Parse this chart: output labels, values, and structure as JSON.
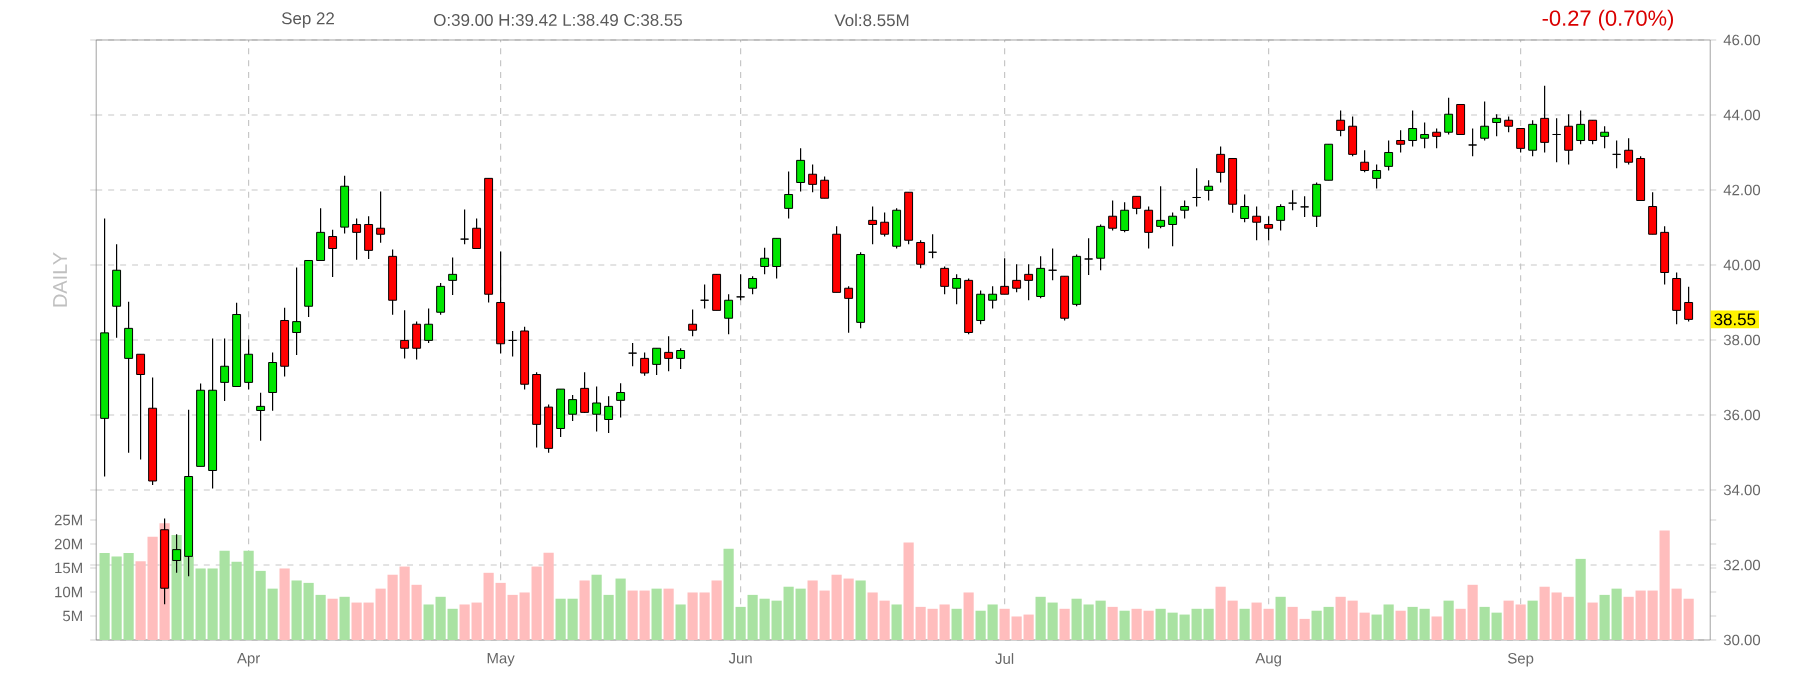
{
  "chart_data": [
    {
      "type": "candlestick",
      "categories": [
        null,
        null,
        null,
        null,
        null,
        null,
        null,
        null,
        null,
        null,
        null,
        null,
        "Apr",
        null,
        null,
        null,
        null,
        null,
        null,
        null,
        null,
        null,
        null,
        null,
        null,
        null,
        null,
        null,
        null,
        null,
        null,
        null,
        null,
        "May",
        null,
        null,
        null,
        null,
        null,
        null,
        null,
        null,
        null,
        null,
        null,
        null,
        null,
        null,
        null,
        null,
        null,
        null,
        null,
        "Jun",
        null,
        null,
        null,
        null,
        null,
        null,
        null,
        null,
        null,
        null,
        null,
        null,
        null,
        null,
        null,
        null,
        null,
        null,
        null,
        null,
        null,
        "Jul",
        null,
        null,
        null,
        null,
        null,
        null,
        null,
        null,
        null,
        null,
        null,
        null,
        null,
        null,
        null,
        null,
        null,
        null,
        null,
        null,
        null,
        "Aug",
        null,
        null,
        null,
        null,
        null,
        null,
        null,
        null,
        null,
        null,
        null,
        null,
        null,
        null,
        null,
        null,
        null,
        null,
        null,
        null,
        "Sep",
        null,
        null,
        null,
        null,
        null,
        null,
        null,
        null,
        null,
        null,
        null,
        null,
        null,
        null
      ],
      "ohlc": [
        [
          35.91,
          41.24,
          34.36,
          38.19
        ],
        [
          38.9,
          40.55,
          38.06,
          39.86
        ],
        [
          37.51,
          39.02,
          34.99,
          38.31
        ],
        [
          37.62,
          37.62,
          34.81,
          37.08
        ],
        [
          36.18,
          37.0,
          34.13,
          34.24
        ],
        [
          32.94,
          33.24,
          30.95,
          31.38
        ],
        [
          32.12,
          32.82,
          31.79,
          32.41
        ],
        [
          32.23,
          36.14,
          31.7,
          34.36
        ],
        [
          34.63,
          36.84,
          34.63,
          36.66
        ],
        [
          34.52,
          38.04,
          34.04,
          36.66
        ],
        [
          36.87,
          38.04,
          36.37,
          37.3
        ],
        [
          36.76,
          38.99,
          36.76,
          38.68
        ],
        [
          36.87,
          38.01,
          36.68,
          37.62
        ],
        [
          36.12,
          36.59,
          35.31,
          36.23
        ],
        [
          36.6,
          37.67,
          36.11,
          37.4
        ],
        [
          38.52,
          38.86,
          37.03,
          37.3
        ],
        [
          38.2,
          39.93,
          37.6,
          38.49
        ],
        [
          38.9,
          40.12,
          38.61,
          40.12
        ],
        [
          40.12,
          41.51,
          40.12,
          40.87
        ],
        [
          40.76,
          40.94,
          39.68,
          40.44
        ],
        [
          41.01,
          42.38,
          40.84,
          42.1
        ],
        [
          41.08,
          41.24,
          40.14,
          40.87
        ],
        [
          41.08,
          41.3,
          40.16,
          40.39
        ],
        [
          40.98,
          41.96,
          40.59,
          40.82
        ],
        [
          40.23,
          40.41,
          38.67,
          39.06
        ],
        [
          37.99,
          38.79,
          37.51,
          37.78
        ],
        [
          38.42,
          38.49,
          37.48,
          37.78
        ],
        [
          37.99,
          38.84,
          37.92,
          38.42
        ],
        [
          38.74,
          39.52,
          38.67,
          39.43
        ],
        [
          39.59,
          40.2,
          39.2,
          39.75
        ],
        [
          40.69,
          41.48,
          40.55,
          40.69
        ],
        [
          40.98,
          41.24,
          40.44,
          40.44
        ],
        [
          42.31,
          42.31,
          39.0,
          39.22
        ],
        [
          39.0,
          40.36,
          37.64,
          37.9
        ],
        [
          37.99,
          38.24,
          37.56,
          37.99
        ],
        [
          38.24,
          38.35,
          36.68,
          36.82
        ],
        [
          37.08,
          37.14,
          35.13,
          35.75
        ],
        [
          36.21,
          36.28,
          34.99,
          35.11
        ],
        [
          35.64,
          36.69,
          35.41,
          36.69
        ],
        [
          36.02,
          36.53,
          35.84,
          36.41
        ],
        [
          36.71,
          37.14,
          36.05,
          36.07
        ],
        [
          36.02,
          36.76,
          35.56,
          36.32
        ],
        [
          35.88,
          36.5,
          35.52,
          36.23
        ],
        [
          36.39,
          36.85,
          35.93,
          36.6
        ],
        [
          37.65,
          37.92,
          37.3,
          37.65
        ],
        [
          37.51,
          37.67,
          37.05,
          37.12
        ],
        [
          37.35,
          37.78,
          37.07,
          37.78
        ],
        [
          37.67,
          38.1,
          37.17,
          37.51
        ],
        [
          37.51,
          37.78,
          37.23,
          37.72
        ],
        [
          38.42,
          38.81,
          38.1,
          38.26
        ],
        [
          39.06,
          39.48,
          38.84,
          39.06
        ],
        [
          39.75,
          39.75,
          38.79,
          38.79
        ],
        [
          38.58,
          39.22,
          38.15,
          39.06
        ],
        [
          39.15,
          39.75,
          39.06,
          39.15
        ],
        [
          39.38,
          39.7,
          39.22,
          39.64
        ],
        [
          39.96,
          40.46,
          39.75,
          40.18
        ],
        [
          39.96,
          40.71,
          39.64,
          40.71
        ],
        [
          41.51,
          42.49,
          41.24,
          41.88
        ],
        [
          42.2,
          43.11,
          41.96,
          42.79
        ],
        [
          42.42,
          42.68,
          41.94,
          42.15
        ],
        [
          42.26,
          42.36,
          41.78,
          41.78
        ],
        [
          40.82,
          41.03,
          39.27,
          39.27
        ],
        [
          39.38,
          39.43,
          38.19,
          39.11
        ],
        [
          38.47,
          40.34,
          38.31,
          40.28
        ],
        [
          41.19,
          41.56,
          40.55,
          41.08
        ],
        [
          41.14,
          41.4,
          40.76,
          40.82
        ],
        [
          40.5,
          41.51,
          40.44,
          41.46
        ],
        [
          41.94,
          41.94,
          40.55,
          40.66
        ],
        [
          40.6,
          40.66,
          39.91,
          40.02
        ],
        [
          40.34,
          40.82,
          40.18,
          40.34
        ],
        [
          39.91,
          39.96,
          39.22,
          39.43
        ],
        [
          39.38,
          39.75,
          38.95,
          39.64
        ],
        [
          39.59,
          39.64,
          38.15,
          38.2
        ],
        [
          38.52,
          39.32,
          38.42,
          39.22
        ],
        [
          39.06,
          39.43,
          38.84,
          39.22
        ],
        [
          39.43,
          40.18,
          39.22,
          39.22
        ],
        [
          39.59,
          40.02,
          39.27,
          39.38
        ],
        [
          39.75,
          40.02,
          39.06,
          39.59
        ],
        [
          39.16,
          40.23,
          39.11,
          39.91
        ],
        [
          39.86,
          40.44,
          39.59,
          39.86
        ],
        [
          39.7,
          39.7,
          38.52,
          38.58
        ],
        [
          38.95,
          40.28,
          38.9,
          40.23
        ],
        [
          40.16,
          40.71,
          39.73,
          40.16
        ],
        [
          40.18,
          41.08,
          39.86,
          41.03
        ],
        [
          41.3,
          41.72,
          40.92,
          40.98
        ],
        [
          40.92,
          41.67,
          40.87,
          41.46
        ],
        [
          41.83,
          41.83,
          41.35,
          41.51
        ],
        [
          41.46,
          41.56,
          40.44,
          40.87
        ],
        [
          41.03,
          42.1,
          40.98,
          41.19
        ],
        [
          41.08,
          41.4,
          40.5,
          41.3
        ],
        [
          41.46,
          41.72,
          41.24,
          41.56
        ],
        [
          41.8,
          42.58,
          41.56,
          41.8
        ],
        [
          41.99,
          42.26,
          41.72,
          42.1
        ],
        [
          42.95,
          43.16,
          42.2,
          42.47
        ],
        [
          42.84,
          42.84,
          41.39,
          41.62
        ],
        [
          41.24,
          41.88,
          41.14,
          41.56
        ],
        [
          41.3,
          41.56,
          40.66,
          41.14
        ],
        [
          41.08,
          41.3,
          40.66,
          40.98
        ],
        [
          41.19,
          41.62,
          40.92,
          41.56
        ],
        [
          41.65,
          41.99,
          41.46,
          41.65
        ],
        [
          41.55,
          41.83,
          41.28,
          41.55
        ],
        [
          41.3,
          42.2,
          41.01,
          42.15
        ],
        [
          42.26,
          43.22,
          42.26,
          43.22
        ],
        [
          43.86,
          44.12,
          43.43,
          43.59
        ],
        [
          43.7,
          43.96,
          42.9,
          42.95
        ],
        [
          42.74,
          43.06,
          42.47,
          42.52
        ],
        [
          42.31,
          42.68,
          42.04,
          42.52
        ],
        [
          42.63,
          43.32,
          42.52,
          43.0
        ],
        [
          43.32,
          43.59,
          43.0,
          43.22
        ],
        [
          43.32,
          44.12,
          43.16,
          43.64
        ],
        [
          43.38,
          43.8,
          43.11,
          43.48
        ],
        [
          43.54,
          43.64,
          43.11,
          43.43
        ],
        [
          43.54,
          44.46,
          43.48,
          44.02
        ],
        [
          44.28,
          44.28,
          43.48,
          43.48
        ],
        [
          43.2,
          43.64,
          42.9,
          43.2
        ],
        [
          43.38,
          44.36,
          43.32,
          43.7
        ],
        [
          43.8,
          44.02,
          43.43,
          43.91
        ],
        [
          43.86,
          43.96,
          43.54,
          43.7
        ],
        [
          43.64,
          43.64,
          43.0,
          43.11
        ],
        [
          43.06,
          43.86,
          42.9,
          43.75
        ],
        [
          43.91,
          44.78,
          43.0,
          43.27
        ],
        [
          43.48,
          43.91,
          42.74,
          43.48
        ],
        [
          43.7,
          44.02,
          42.68,
          43.06
        ],
        [
          43.32,
          44.12,
          43.22,
          43.75
        ],
        [
          43.86,
          43.86,
          43.22,
          43.32
        ],
        [
          43.43,
          43.7,
          43.11,
          43.54
        ],
        [
          42.95,
          43.32,
          42.58,
          42.95
        ],
        [
          43.06,
          43.38,
          42.68,
          42.74
        ],
        [
          42.84,
          42.9,
          41.72,
          41.72
        ],
        [
          41.56,
          41.94,
          40.82,
          40.82
        ],
        [
          40.87,
          41.03,
          39.48,
          39.8
        ],
        [
          39.64,
          39.8,
          38.42,
          38.79
        ],
        [
          39.0,
          39.42,
          38.49,
          38.55
        ]
      ],
      "colors": [
        "#00e600",
        "#00e600",
        "#00e600",
        "#ff0000",
        "#ff0000",
        "#ff0000",
        "#00e600",
        "#00e600",
        "#00e600",
        "#00e600",
        "#00e600",
        "#00e600",
        "#00e600",
        "#00e600",
        "#00e600",
        "#ff0000",
        "#00e600",
        "#00e600",
        "#00e600",
        "#ff0000",
        "#00e600",
        "#ff0000",
        "#ff0000",
        "#ff0000",
        "#ff0000",
        "#ff0000",
        "#ff0000",
        "#00e600",
        "#00e600",
        "#00e600",
        "#000000",
        "#ff0000",
        "#ff0000",
        "#ff0000",
        "#000000",
        "#ff0000",
        "#ff0000",
        "#ff0000",
        "#00e600",
        "#00e600",
        "#ff0000",
        "#00e600",
        "#00e600",
        "#00e600",
        "#000000",
        "#ff0000",
        "#00e600",
        "#ff0000",
        "#00e600",
        "#ff0000",
        "#000000",
        "#ff0000",
        "#00e600",
        "#000000",
        "#00e600",
        "#00e600",
        "#00e600",
        "#00e600",
        "#00e600",
        "#ff0000",
        "#ff0000",
        "#ff0000",
        "#ff0000",
        "#00e600",
        "#ff0000",
        "#ff0000",
        "#00e600",
        "#ff0000",
        "#ff0000",
        "#000000",
        "#ff0000",
        "#00e600",
        "#ff0000",
        "#00e600",
        "#00e600",
        "#ff0000",
        "#ff0000",
        "#ff0000",
        "#00e600",
        "#000000",
        "#ff0000",
        "#00e600",
        "#000000",
        "#00e600",
        "#ff0000",
        "#00e600",
        "#ff0000",
        "#ff0000",
        "#00e600",
        "#00e600",
        "#00e600",
        "#000000",
        "#00e600",
        "#ff0000",
        "#ff0000",
        "#00e600",
        "#ff0000",
        "#ff0000",
        "#00e600",
        "#000000",
        "#000000",
        "#00e600",
        "#00e600",
        "#ff0000",
        "#ff0000",
        "#ff0000",
        "#00e600",
        "#00e600",
        "#ff0000",
        "#00e600",
        "#00e600",
        "#ff0000",
        "#00e600",
        "#ff0000",
        "#000000",
        "#00e600",
        "#00e600",
        "#ff0000",
        "#ff0000",
        "#00e600",
        "#ff0000",
        "#000000",
        "#ff0000",
        "#00e600",
        "#ff0000",
        "#00e600",
        "#000000",
        "#ff0000",
        "#ff0000",
        "#ff0000",
        "#ff0000",
        "#ff0000",
        "#ff0000"
      ],
      "ylim": [
        30,
        46
      ],
      "yticks": [
        {
          "value": 30,
          "label": "30.00"
        },
        {
          "value": 32,
          "label": "32.00"
        },
        {
          "value": 34,
          "label": "34.00"
        },
        {
          "value": 36,
          "label": "36.00"
        },
        {
          "value": 38,
          "label": "38.00"
        },
        {
          "value": 40,
          "label": "40.00"
        },
        {
          "value": 42,
          "label": "42.00"
        },
        {
          "value": 44,
          "label": "44.00"
        },
        {
          "value": 46,
          "label": "46.00"
        }
      ],
      "grid": true,
      "annotations": [
        "Sep 22",
        "O:39.00 H:39.42 L:38.49 C:38.55",
        "Vol:8.55M",
        "-0.27 (0.70%)",
        "DAILY",
        {
          "text": "38.55",
          "y": 38.55
        }
      ]
    },
    {
      "type": "bar",
      "categories": [
        null,
        null,
        null,
        null,
        null,
        null,
        null,
        null,
        null,
        null,
        null,
        null,
        null,
        null,
        null,
        null,
        null,
        null,
        null,
        null,
        null,
        null,
        null,
        null,
        null,
        null,
        null,
        null,
        null,
        null,
        null,
        null,
        null,
        null,
        null,
        null,
        null,
        null,
        null,
        null,
        null,
        null,
        null,
        null,
        null,
        null,
        null,
        null,
        null,
        null,
        null,
        null,
        null,
        null,
        null,
        null,
        null,
        null,
        null,
        null,
        null,
        null,
        null,
        null,
        null,
        null,
        null,
        null,
        null,
        null,
        null,
        null,
        null,
        null,
        null,
        null,
        null,
        null,
        null,
        null,
        null,
        null,
        null,
        null,
        null,
        null,
        null,
        null,
        null,
        null,
        null,
        null,
        null,
        null,
        null,
        null,
        null,
        null,
        null,
        null,
        null,
        null,
        null,
        null,
        null,
        null,
        null,
        null,
        null,
        null,
        null,
        null,
        null,
        null,
        null,
        null,
        null,
        null,
        null,
        null,
        null,
        null,
        null,
        null,
        null,
        null,
        null,
        null,
        null,
        null,
        null,
        null,
        null
      ],
      "values": [
        18.1,
        17.4,
        18.1,
        16.4,
        21.5,
        24.3,
        21.9,
        17.4,
        14.9,
        14.9,
        18.6,
        16.3,
        18.6,
        14.4,
        10.7,
        14.9,
        12.4,
        11.9,
        9.4,
        8.6,
        9.0,
        7.8,
        7.8,
        10.7,
        13.6,
        15.3,
        11.5,
        7.4,
        9.0,
        6.5,
        7.4,
        7.8,
        14.0,
        11.9,
        9.4,
        9.9,
        15.3,
        18.2,
        8.6,
        8.6,
        12.4,
        13.6,
        9.4,
        12.8,
        10.3,
        10.3,
        10.7,
        10.7,
        7.4,
        9.9,
        9.9,
        12.4,
        19.0,
        6.9,
        9.4,
        8.6,
        8.2,
        11.1,
        10.7,
        12.4,
        10.3,
        13.6,
        12.8,
        12.4,
        9.9,
        8.2,
        7.4,
        20.3,
        6.9,
        6.5,
        7.4,
        6.5,
        9.9,
        6.1,
        7.4,
        6.5,
        4.9,
        5.3,
        9.0,
        7.8,
        6.5,
        8.6,
        7.4,
        8.2,
        6.9,
        6.1,
        6.5,
        6.1,
        6.5,
        5.7,
        5.3,
        6.5,
        6.5,
        11.1,
        8.2,
        6.5,
        7.8,
        6.5,
        9.0,
        6.9,
        4.4,
        6.1,
        6.9,
        9.0,
        8.2,
        5.7,
        5.3,
        7.4,
        6.1,
        6.9,
        6.5,
        4.9,
        8.2,
        6.5,
        11.5,
        6.9,
        5.7,
        8.2,
        7.4,
        8.2,
        11.1,
        9.9,
        9.0,
        16.9,
        7.8,
        9.4,
        10.7,
        9.0,
        10.3,
        10.3,
        22.8,
        10.7,
        8.6
      ],
      "colors": [
        "#a9e2a2",
        "#a9e2a2",
        "#a9e2a2",
        "#ffbdbd",
        "#ffbdbd",
        "#ffbdbd",
        "#a9e2a2",
        "#a9e2a2",
        "#a9e2a2",
        "#a9e2a2",
        "#a9e2a2",
        "#a9e2a2",
        "#a9e2a2",
        "#a9e2a2",
        "#a9e2a2",
        "#ffbdbd",
        "#a9e2a2",
        "#a9e2a2",
        "#a9e2a2",
        "#ffbdbd",
        "#a9e2a2",
        "#ffbdbd",
        "#ffbdbd",
        "#ffbdbd",
        "#ffbdbd",
        "#ffbdbd",
        "#ffbdbd",
        "#a9e2a2",
        "#a9e2a2",
        "#a9e2a2",
        "#ffbdbd",
        "#ffbdbd",
        "#ffbdbd",
        "#ffbdbd",
        "#ffbdbd",
        "#ffbdbd",
        "#ffbdbd",
        "#ffbdbd",
        "#a9e2a2",
        "#a9e2a2",
        "#ffbdbd",
        "#a9e2a2",
        "#a9e2a2",
        "#a9e2a2",
        "#ffbdbd",
        "#ffbdbd",
        "#a9e2a2",
        "#ffbdbd",
        "#a9e2a2",
        "#ffbdbd",
        "#ffbdbd",
        "#ffbdbd",
        "#a9e2a2",
        "#a9e2a2",
        "#a9e2a2",
        "#a9e2a2",
        "#a9e2a2",
        "#a9e2a2",
        "#a9e2a2",
        "#ffbdbd",
        "#ffbdbd",
        "#ffbdbd",
        "#ffbdbd",
        "#a9e2a2",
        "#ffbdbd",
        "#ffbdbd",
        "#a9e2a2",
        "#ffbdbd",
        "#ffbdbd",
        "#ffbdbd",
        "#ffbdbd",
        "#a9e2a2",
        "#ffbdbd",
        "#a9e2a2",
        "#a9e2a2",
        "#ffbdbd",
        "#ffbdbd",
        "#ffbdbd",
        "#a9e2a2",
        "#a9e2a2",
        "#ffbdbd",
        "#a9e2a2",
        "#a9e2a2",
        "#a9e2a2",
        "#ffbdbd",
        "#a9e2a2",
        "#ffbdbd",
        "#ffbdbd",
        "#a9e2a2",
        "#a9e2a2",
        "#a9e2a2",
        "#a9e2a2",
        "#a9e2a2",
        "#ffbdbd",
        "#ffbdbd",
        "#a9e2a2",
        "#ffbdbd",
        "#ffbdbd",
        "#a9e2a2",
        "#ffbdbd",
        "#ffbdbd",
        "#a9e2a2",
        "#a9e2a2",
        "#ffbdbd",
        "#ffbdbd",
        "#ffbdbd",
        "#a9e2a2",
        "#a9e2a2",
        "#ffbdbd",
        "#a9e2a2",
        "#a9e2a2",
        "#ffbdbd",
        "#a9e2a2",
        "#ffbdbd",
        "#ffbdbd",
        "#a9e2a2",
        "#a9e2a2",
        "#ffbdbd",
        "#ffbdbd",
        "#a9e2a2",
        "#ffbdbd",
        "#ffbdbd",
        "#ffbdbd",
        "#a9e2a2",
        "#ffbdbd",
        "#a9e2a2",
        "#a9e2a2",
        "#ffbdbd",
        "#ffbdbd",
        "#ffbdbd",
        "#ffbdbd",
        "#ffbdbd",
        "#ffbdbd"
      ],
      "ylim": [
        0,
        25
      ],
      "yticks": [
        {
          "value": 5,
          "label": "5M"
        },
        {
          "value": 10,
          "label": "10M"
        },
        {
          "value": 15,
          "label": "15M"
        },
        {
          "value": 20,
          "label": "20M"
        },
        {
          "value": 25,
          "label": "25M"
        }
      ],
      "tick_labels": "y"
    }
  ]
}
